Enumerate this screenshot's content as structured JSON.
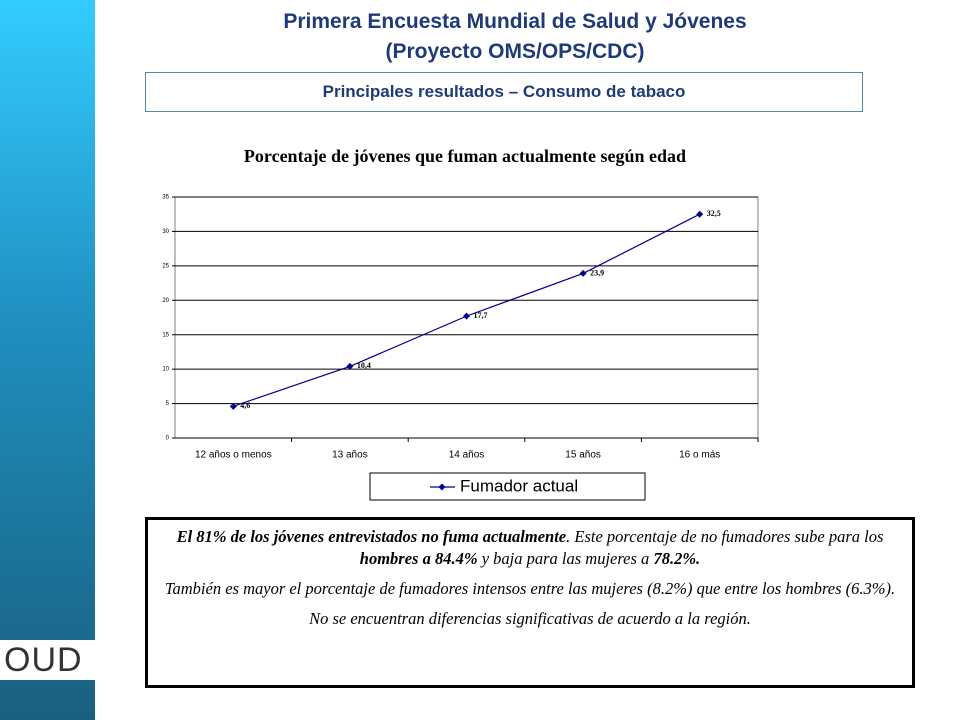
{
  "header": {
    "title_line1": "Primera Encuesta Mundial de Salud y Jóvenes",
    "title_line2": "(Proyecto OMS/OPS/CDC)",
    "subtitle": "Principales resultados – Consumo de tabaco"
  },
  "chart_data": {
    "type": "line",
    "title": "Porcentaje de jóvenes que fuman actualmente según edad",
    "categories": [
      "12 años o menos",
      "13 años",
      "14 años",
      "15 años",
      "16 o más"
    ],
    "series": [
      {
        "name": "Fumador actual",
        "color": "#00008b",
        "values": [
          4.6,
          10.4,
          17.7,
          23.9,
          32.5
        ],
        "value_labels": [
          "4,6",
          "10,4",
          "17,7",
          "23,9",
          "32,5"
        ]
      }
    ],
    "ylim": [
      0,
      35
    ],
    "yticks": [
      0,
      5,
      10,
      15,
      20,
      25,
      30,
      35
    ],
    "grid": true,
    "legend": "bottom"
  },
  "note": {
    "paragraph1": [
      "El 81% de los jóvenes entrevistados no fuma actualmente",
      ". Este porcentaje de no fumadores sube para los ",
      "hombres a 84.4%",
      " y baja para las mujeres a ",
      "78.2%."
    ],
    "paragraph2": "También es mayor el porcentaje de fumadores intensos entre las mujeres (8.2%) que entre los hombres (6.3%).",
    "paragraph3": "No se encuentran diferencias significativas de acuerdo a la región."
  },
  "logo": "OUD"
}
